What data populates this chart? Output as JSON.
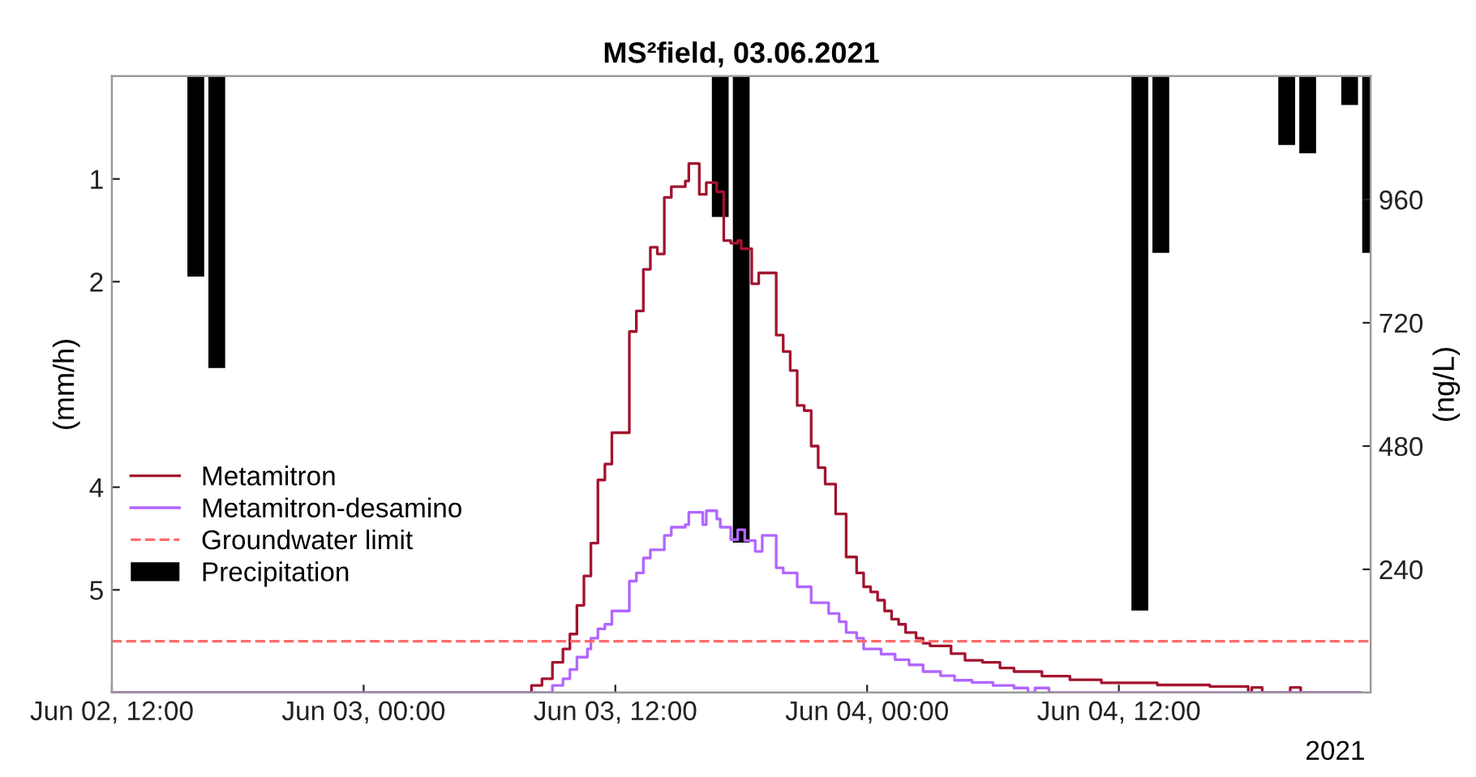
{
  "chart_data": {
    "type": "step",
    "title": "MS²field, 03.06.2021",
    "ylabel": "(mm/h)",
    "y2label": "(ng/L)",
    "annotations": [
      "2021"
    ],
    "xlim": [
      "2021-06-02T12:00",
      "2021-06-05T00:00"
    ],
    "xticks": [
      {
        "value": "2021-06-02T12:00",
        "label": "Jun 02, 12:00"
      },
      {
        "value": "2021-06-03T00:00",
        "label": "Jun 03, 00:00"
      },
      {
        "value": "2021-06-03T12:00",
        "label": "Jun 03, 12:00"
      },
      {
        "value": "2021-06-04T00:00",
        "label": "Jun 04, 00:00"
      },
      {
        "value": "2021-06-04T12:00",
        "label": "Jun 04, 12:00"
      }
    ],
    "ylim": [
      6,
      0
    ],
    "yticks": [
      1,
      2,
      4,
      5
    ],
    "y2lim": [
      0,
      1200
    ],
    "y2ticks": [
      240,
      480,
      720,
      960
    ],
    "grid": false,
    "legend": "left",
    "line_style": "solid",
    "marker": "none",
    "ref_lines": [
      {
        "axis": "y2",
        "value": 100,
        "label": "Groundwater limit",
        "color": "#ff6b6b",
        "line_style": "dashed"
      }
    ],
    "series": [
      {
        "name": "Metamitron",
        "axis": "y2",
        "color": "#a2142f",
        "x": [
          "2021-06-02T12:00",
          "2021-06-03T08:00",
          "2021-06-03T08:30",
          "2021-06-03T09:00",
          "2021-06-03T09:30",
          "2021-06-03T09:50",
          "2021-06-03T10:10",
          "2021-06-03T10:30",
          "2021-06-03T10:50",
          "2021-06-03T11:10",
          "2021-06-03T11:30",
          "2021-06-03T11:50",
          "2021-06-03T12:40",
          "2021-06-03T13:00",
          "2021-06-03T13:20",
          "2021-06-03T13:40",
          "2021-06-03T14:00",
          "2021-06-03T14:20",
          "2021-06-03T14:40",
          "2021-06-03T15:20",
          "2021-06-03T15:30",
          "2021-06-03T16:00",
          "2021-06-03T16:20",
          "2021-06-03T16:50",
          "2021-06-03T17:10",
          "2021-06-03T17:30",
          "2021-06-03T17:50",
          "2021-06-03T18:00",
          "2021-06-03T18:30",
          "2021-06-03T18:50",
          "2021-06-03T19:40",
          "2021-06-03T20:00",
          "2021-06-03T20:20",
          "2021-06-03T20:40",
          "2021-06-03T21:00",
          "2021-06-03T21:20",
          "2021-06-03T21:40",
          "2021-06-03T22:00",
          "2021-06-03T22:30",
          "2021-06-03T23:00",
          "2021-06-03T23:30",
          "2021-06-03T23:50",
          "2021-06-04T00:10",
          "2021-06-04T00:30",
          "2021-06-04T00:50",
          "2021-06-04T01:10",
          "2021-06-04T01:30",
          "2021-06-04T01:50",
          "2021-06-04T02:20",
          "2021-06-04T02:40",
          "2021-06-04T03:00",
          "2021-06-04T04:00",
          "2021-06-04T04:40",
          "2021-06-04T05:30",
          "2021-06-04T06:20",
          "2021-06-04T07:00",
          "2021-06-04T08:20",
          "2021-06-04T09:40",
          "2021-06-04T11:10",
          "2021-06-04T13:50",
          "2021-06-04T16:20",
          "2021-06-04T18:10",
          "2021-06-04T18:20",
          "2021-06-04T18:50",
          "2021-06-04T20:10",
          "2021-06-04T20:40",
          "2021-06-04T23:30"
        ],
        "values": [
          0,
          14,
          27,
          59,
          85,
          114,
          170,
          227,
          291,
          414,
          445,
          506,
          703,
          743,
          824,
          867,
          854,
          964,
          985,
          996,
          1030,
          970,
          993,
          975,
          880,
          875,
          880,
          864,
          796,
          817,
          696,
          664,
          627,
          559,
          549,
          480,
          438,
          406,
          348,
          264,
          233,
          206,
          196,
          180,
          159,
          143,
          133,
          117,
          106,
          96,
          91,
          76,
          63,
          59,
          48,
          41,
          32,
          25,
          19,
          15,
          12,
          0,
          10,
          0,
          10,
          0,
          0
        ]
      },
      {
        "name": "Metamitron-desamino",
        "axis": "y2",
        "color": "#b266ff",
        "x": [
          "2021-06-02T12:00",
          "2021-06-03T09:00",
          "2021-06-03T09:30",
          "2021-06-03T09:50",
          "2021-06-03T10:10",
          "2021-06-03T10:40",
          "2021-06-03T10:50",
          "2021-06-03T11:10",
          "2021-06-03T11:30",
          "2021-06-03T11:50",
          "2021-06-03T12:40",
          "2021-06-03T13:00",
          "2021-06-03T13:20",
          "2021-06-03T13:40",
          "2021-06-03T14:20",
          "2021-06-03T14:40",
          "2021-06-03T15:20",
          "2021-06-03T15:30",
          "2021-06-03T16:10",
          "2021-06-03T16:20",
          "2021-06-03T16:50",
          "2021-06-03T17:00",
          "2021-06-03T17:30",
          "2021-06-03T17:50",
          "2021-06-03T18:10",
          "2021-06-03T18:40",
          "2021-06-03T19:00",
          "2021-06-03T19:40",
          "2021-06-03T20:00",
          "2021-06-03T20:40",
          "2021-06-03T21:20",
          "2021-06-03T22:10",
          "2021-06-03T22:40",
          "2021-06-03T23:00",
          "2021-06-03T23:30",
          "2021-06-03T23:50",
          "2021-06-04T00:40",
          "2021-06-04T01:20",
          "2021-06-04T02:00",
          "2021-06-04T02:40",
          "2021-06-04T03:30",
          "2021-06-04T04:10",
          "2021-06-04T05:00",
          "2021-06-04T06:00",
          "2021-06-04T07:00",
          "2021-06-04T07:40",
          "2021-06-04T08:00",
          "2021-06-04T08:40",
          "2021-06-04T23:30"
        ],
        "values": [
          0,
          14,
          27,
          45,
          69,
          85,
          106,
          124,
          133,
          159,
          217,
          233,
          262,
          278,
          306,
          322,
          327,
          351,
          327,
          354,
          338,
          322,
          298,
          317,
          296,
          275,
          306,
          243,
          233,
          206,
          175,
          154,
          138,
          117,
          106,
          85,
          75,
          64,
          54,
          41,
          33,
          24,
          20,
          14,
          9,
          0,
          9,
          0,
          0
        ]
      },
      {
        "name": "Precipitation",
        "type": "bar",
        "axis": "y",
        "color": "#000000",
        "x": [
          "2021-06-02T16:00",
          "2021-06-02T17:00",
          "2021-06-03T17:00",
          "2021-06-03T18:00",
          "2021-06-04T13:00",
          "2021-06-04T14:00",
          "2021-06-04T20:00",
          "2021-06-04T21:00",
          "2021-06-04T23:00",
          "2021-06-05T00:00"
        ],
        "values": [
          1.95,
          2.84,
          1.37,
          4.54,
          5.2,
          1.72,
          0.67,
          0.75,
          0.28,
          1.72
        ]
      }
    ]
  }
}
